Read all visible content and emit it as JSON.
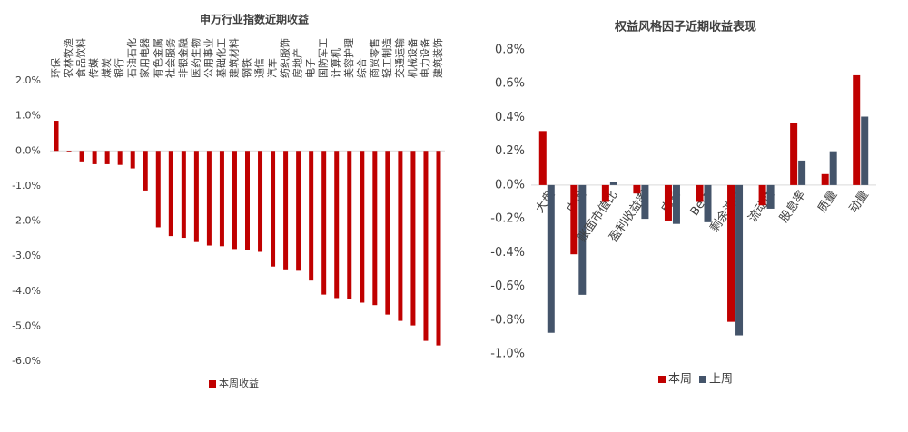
{
  "chart_data": [
    {
      "type": "bar",
      "title": "申万行业指数近期收益",
      "categories": [
        "环保",
        "农林牧渔",
        "食品饮料",
        "传媒",
        "煤炭",
        "银行",
        "石油石化",
        "家用电器",
        "有色金属",
        "社会服务",
        "非银金融",
        "医药生物",
        "公用事业",
        "基础化工",
        "建筑材料",
        "钢铁",
        "通信",
        "汽车",
        "纺织服饰",
        "房地产",
        "电子",
        "国防军工",
        "计算机",
        "美容护理",
        "综合",
        "商贸零售",
        "轻工制造",
        "交通运输",
        "机械设备",
        "电力设备",
        "建筑装饰"
      ],
      "series": [
        {
          "name": "本周收益",
          "color": "#c00000",
          "values": [
            0.86,
            -0.02,
            -0.3,
            -0.38,
            -0.38,
            -0.4,
            -0.5,
            -1.13,
            -2.18,
            -2.43,
            -2.48,
            -2.6,
            -2.7,
            -2.72,
            -2.8,
            -2.83,
            -2.88,
            -3.3,
            -3.38,
            -3.42,
            -3.7,
            -4.1,
            -4.2,
            -4.22,
            -4.33,
            -4.4,
            -4.67,
            -4.85,
            -4.98,
            -5.42,
            -5.55
          ]
        }
      ],
      "ylim": [
        -6,
        2
      ],
      "yticks": [
        {
          "value": 2,
          "label": "2.0%"
        },
        {
          "value": 1,
          "label": "1.0%"
        },
        {
          "value": 0,
          "label": "0.0%"
        },
        {
          "value": -1,
          "label": "-1.0%"
        },
        {
          "value": -2,
          "label": "-2.0%"
        },
        {
          "value": -3,
          "label": "-3.0%"
        },
        {
          "value": -4,
          "label": "-4.0%"
        },
        {
          "value": -5,
          "label": "-5.0%"
        },
        {
          "value": -6,
          "label": "-6.0%"
        }
      ]
    },
    {
      "type": "bar",
      "title": "权益风格因子近期收益表现",
      "categories": [
        "大盘",
        "中盘",
        "账面市值比",
        "盈利收益率",
        "成长",
        "Beta",
        "剩余波动",
        "流动性",
        "股息率",
        "质量",
        "动量"
      ],
      "series": [
        {
          "name": "本周",
          "color": "#c00000",
          "values": [
            0.32,
            -0.41,
            -0.1,
            -0.05,
            -0.21,
            -0.1,
            -0.81,
            -0.12,
            0.365,
            0.065,
            0.65
          ]
        },
        {
          "name": "上周",
          "color": "#44546a",
          "values": [
            -0.875,
            -0.65,
            0.02,
            -0.2,
            -0.23,
            -0.22,
            -0.89,
            -0.14,
            0.145,
            0.2,
            0.405
          ]
        }
      ],
      "ylim": [
        -1,
        0.8
      ],
      "yticks": [
        {
          "value": 0.8,
          "label": "0.8%"
        },
        {
          "value": 0.6,
          "label": "0.6%"
        },
        {
          "value": 0.4,
          "label": "0.4%"
        },
        {
          "value": 0.2,
          "label": "0.2%"
        },
        {
          "value": 0,
          "label": "0.0%"
        },
        {
          "value": -0.2,
          "label": "-0.2%"
        },
        {
          "value": -0.4,
          "label": "-0.4%"
        },
        {
          "value": -0.6,
          "label": "-0.6%"
        },
        {
          "value": -0.8,
          "label": "-0.8%"
        },
        {
          "value": -1,
          "label": "-1.0%"
        }
      ]
    }
  ]
}
